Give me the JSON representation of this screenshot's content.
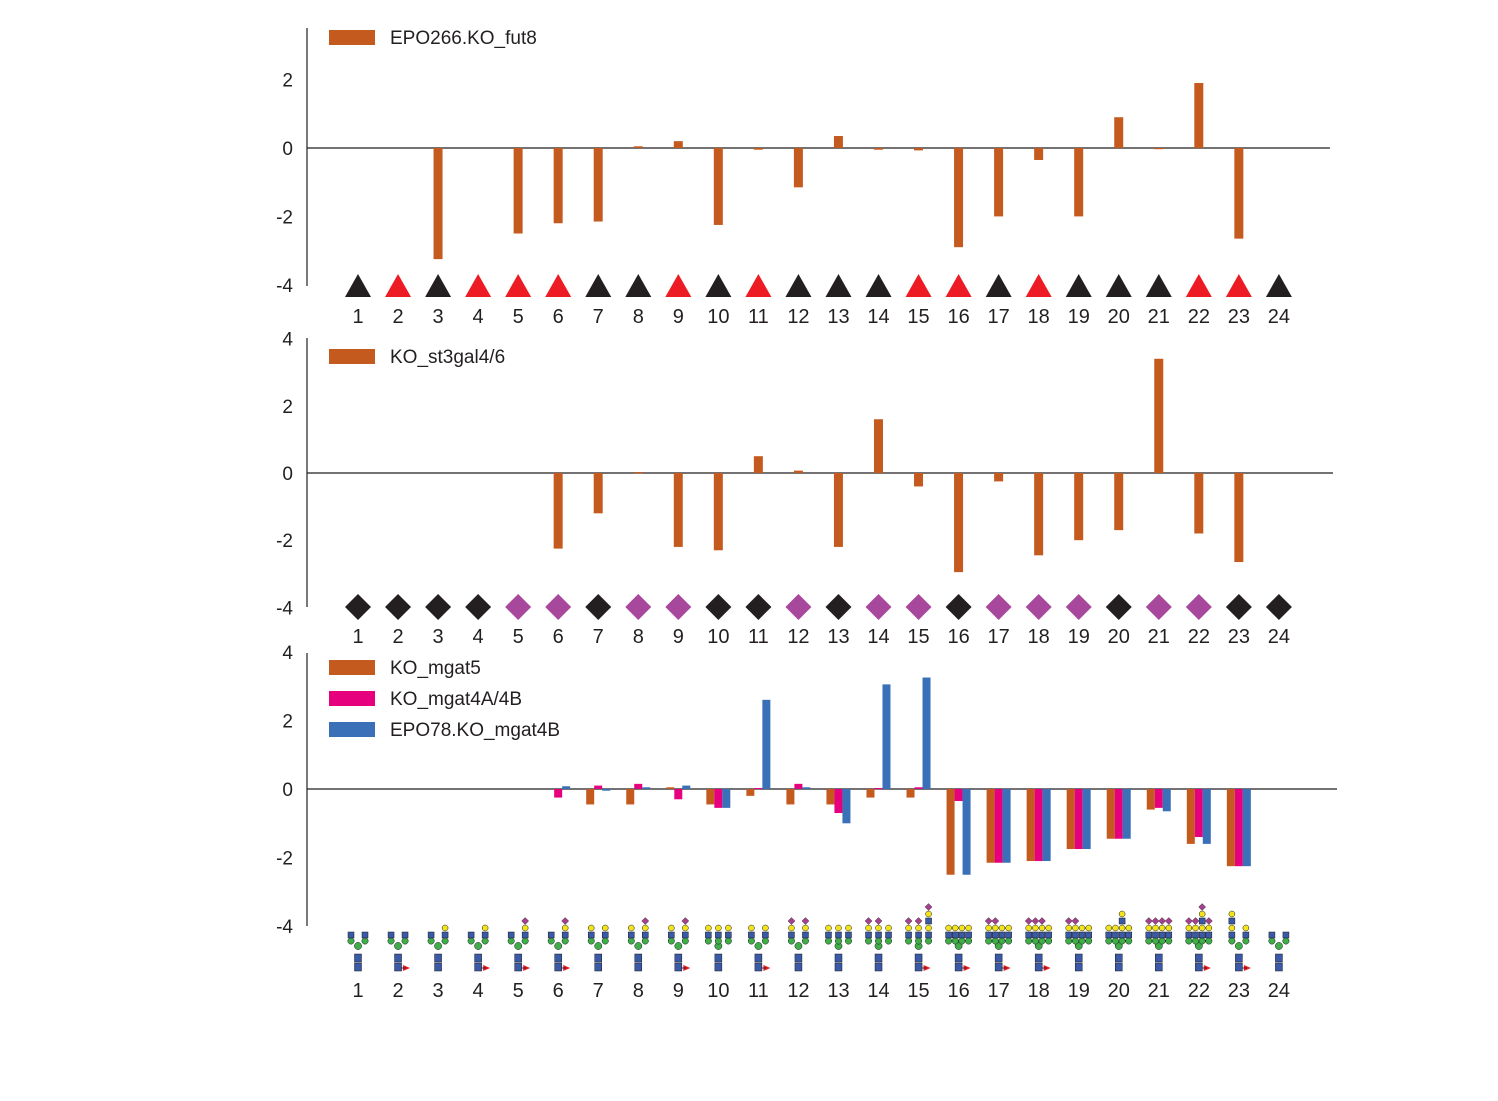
{
  "colors": {
    "orange": "#c55a1e",
    "magenta": "#e6007e",
    "blue": "#3a70b8",
    "red_marker": "#ed1c24",
    "black_marker": "#231f20",
    "purple_marker": "#a8489c",
    "glycan_blue_square": "#3a5aa8",
    "glycan_green_circle": "#3fae49",
    "glycan_yellow_circle": "#f2e31a",
    "glycan_purple_diamond": "#a4418e",
    "glycan_red_triangle": "#ed1c24"
  },
  "chart_data": [
    {
      "type": "bar",
      "categories": [
        "1",
        "2",
        "3",
        "4",
        "5",
        "6",
        "7",
        "8",
        "9",
        "10",
        "11",
        "12",
        "13",
        "14",
        "15",
        "16",
        "17",
        "18",
        "19",
        "20",
        "21",
        "22",
        "23",
        "24"
      ],
      "ylim": [
        -4,
        3
      ],
      "yticks": [
        "2",
        "0",
        "-2",
        "-4"
      ],
      "series": [
        {
          "name": "EPO266.KO_fut8",
          "color": "#c55a1e",
          "values": [
            0,
            -3.25,
            0,
            -2.5,
            -2.2,
            -2.15,
            0.05,
            0.2,
            -2.25,
            -0.05,
            -1.15,
            0.35,
            -0.05,
            -0.07,
            -2.9,
            -2.0,
            -0.35,
            -2.0,
            0.9,
            -0.03,
            1.9,
            -2.65,
            0,
            0
          ]
        }
      ],
      "markers": {
        "shape": "triangle",
        "colors": [
          "black",
          "red",
          "black",
          "red",
          "red",
          "red",
          "black",
          "black",
          "red",
          "black",
          "red",
          "black",
          "black",
          "black",
          "red",
          "red",
          "black",
          "red",
          "black",
          "black",
          "black",
          "red",
          "red",
          "black"
        ]
      }
    },
    {
      "type": "bar",
      "categories": [
        "1",
        "2",
        "3",
        "4",
        "5",
        "6",
        "7",
        "8",
        "9",
        "10",
        "11",
        "12",
        "13",
        "14",
        "15",
        "16",
        "17",
        "18",
        "19",
        "20",
        "21",
        "22",
        "23",
        "24"
      ],
      "ylim": [
        -4,
        4
      ],
      "yticks": [
        "4",
        "2",
        "0",
        "-2",
        "-4"
      ],
      "series": [
        {
          "name": "KO_st3gal4/6",
          "color": "#c55a1e",
          "values": [
            0,
            0,
            0,
            0,
            -2.25,
            -1.2,
            0.03,
            -2.2,
            -2.3,
            0.5,
            0.07,
            -2.2,
            1.6,
            -0.4,
            -2.95,
            -0.25,
            -2.45,
            -2.0,
            -1.7,
            3.4,
            -1.8,
            -2.65,
            0,
            0
          ]
        }
      ],
      "markers": {
        "shape": "diamond",
        "colors": [
          "black",
          "black",
          "black",
          "black",
          "purple",
          "purple",
          "black",
          "purple",
          "purple",
          "black",
          "black",
          "purple",
          "black",
          "purple",
          "purple",
          "black",
          "purple",
          "purple",
          "purple",
          "black",
          "purple",
          "purple",
          "black",
          "black"
        ]
      }
    },
    {
      "type": "bar",
      "categories": [
        "1",
        "2",
        "3",
        "4",
        "5",
        "6",
        "7",
        "8",
        "9",
        "10",
        "11",
        "12",
        "13",
        "14",
        "15",
        "16",
        "17",
        "18",
        "19",
        "20",
        "21",
        "22",
        "23",
        "24"
      ],
      "ylim": [
        -4,
        4
      ],
      "yticks": [
        "4",
        "2",
        "0",
        "-2",
        "-4"
      ],
      "series": [
        {
          "name": "KO_mgat5",
          "color": "#c55a1e",
          "values": [
            0,
            0,
            0,
            0,
            0,
            -0.45,
            -0.45,
            0.05,
            -0.45,
            -0.2,
            -0.45,
            -0.45,
            -0.25,
            -0.25,
            -2.5,
            -2.15,
            -2.1,
            -1.75,
            -1.45,
            -0.6,
            -1.6,
            -2.25,
            0,
            0
          ]
        },
        {
          "name": "KO_mgat4A/4B",
          "color": "#e6007e",
          "values": [
            0,
            0,
            0,
            0,
            -0.25,
            0.1,
            0.15,
            -0.3,
            -0.55,
            0.03,
            0.15,
            -0.7,
            0.03,
            0.05,
            -0.35,
            -2.15,
            -2.1,
            -1.75,
            -1.45,
            -0.55,
            -1.4,
            -2.25,
            0,
            0
          ]
        },
        {
          "name": "EPO78.KO_mgat4B",
          "color": "#3a70b8",
          "values": [
            0,
            0,
            0,
            0,
            0.08,
            -0.05,
            0.05,
            0.1,
            -0.55,
            2.6,
            0.05,
            -1.0,
            3.05,
            3.25,
            -2.5,
            -2.15,
            -2.1,
            -1.75,
            -1.45,
            -0.65,
            -1.6,
            -2.25,
            0,
            0
          ]
        }
      ],
      "glycans": [
        {
          "antennae": [
            "",
            ""
          ],
          "fuc": false
        },
        {
          "antennae": [
            "",
            ""
          ],
          "fuc": true
        },
        {
          "antennae": [
            "",
            "g"
          ],
          "fuc": false
        },
        {
          "antennae": [
            "",
            "g"
          ],
          "fuc": true
        },
        {
          "antennae": [
            "",
            "gs"
          ],
          "fuc": true
        },
        {
          "antennae": [
            "",
            "gs"
          ],
          "fuc": true,
          "bisect": true
        },
        {
          "antennae": [
            "g",
            "g"
          ],
          "fuc": false
        },
        {
          "antennae": [
            "g",
            "gs"
          ],
          "fuc": false
        },
        {
          "antennae": [
            "g",
            "gs"
          ],
          "fuc": true
        },
        {
          "antennae": [
            "g",
            "g",
            "g"
          ],
          "fuc": false
        },
        {
          "antennae": [
            "g",
            "g"
          ],
          "fuc": true
        },
        {
          "antennae": [
            "gs",
            "gs"
          ],
          "fuc": false
        },
        {
          "antennae": [
            "g",
            "g",
            "g"
          ],
          "fuc": false
        },
        {
          "antennae": [
            "gs",
            "gs",
            "g"
          ],
          "fuc": false
        },
        {
          "antennae": [
            "gs",
            "gs",
            "glgs"
          ],
          "fuc": true
        },
        {
          "antennae": [
            "g",
            "g",
            "g",
            "g"
          ],
          "fuc": true
        },
        {
          "antennae": [
            "gs",
            "gs",
            "g",
            "g"
          ],
          "fuc": true
        },
        {
          "antennae": [
            "gs",
            "gs",
            "gs",
            "g"
          ],
          "fuc": true
        },
        {
          "antennae": [
            "gs",
            "gs",
            "g",
            "g"
          ],
          "fuc": false
        },
        {
          "antennae": [
            "g",
            "g",
            "glg",
            "g"
          ],
          "fuc": false
        },
        {
          "antennae": [
            "gs",
            "gs",
            "gs",
            "gs"
          ],
          "fuc": false
        },
        {
          "antennae": [
            "gs",
            "gs",
            "glgs",
            "gs"
          ],
          "fuc": true
        },
        {
          "antennae": [
            "glg",
            "g"
          ],
          "fuc": true
        },
        {
          "antennae": [
            "",
            ""
          ],
          "fuc": false,
          "hybrid": true
        }
      ]
    }
  ]
}
